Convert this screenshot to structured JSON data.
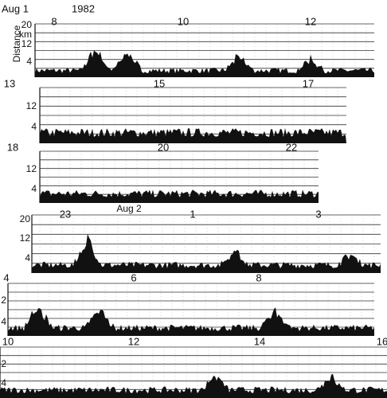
{
  "header": {
    "date": "Aug 1",
    "year": "1982",
    "axis_label": "Distance",
    "axis_unit": "km"
  },
  "strips": [
    {
      "hours": [
        "8",
        "10",
        "12"
      ],
      "distance_labels": [
        "20",
        "12",
        "4"
      ]
    },
    {
      "hours": [
        "13",
        "15",
        "17"
      ],
      "distance_labels": [
        "12",
        "4"
      ]
    },
    {
      "hours": [
        "18",
        "20",
        "22"
      ],
      "distance_labels": [
        "12",
        "4"
      ]
    },
    {
      "hours": [
        "23",
        "1",
        "3"
      ],
      "distance_labels": [
        "20",
        "12",
        "4"
      ],
      "date_label": "Aug 2"
    },
    {
      "hours": [
        "4",
        "6",
        "8"
      ],
      "distance_labels": [
        "2",
        "4"
      ]
    },
    {
      "hours": [
        "10",
        "12",
        "14",
        "16"
      ],
      "distance_labels": [
        "2",
        "4"
      ]
    }
  ]
}
